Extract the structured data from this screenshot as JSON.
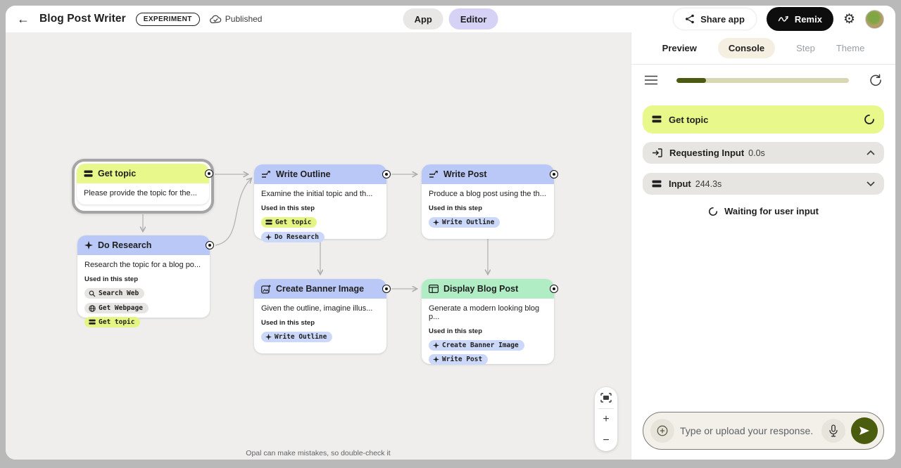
{
  "colors": {
    "lime": "#e9f88b",
    "blue_header": "#b9c8f7",
    "mint_header": "#b0edc4",
    "chip_lime": "#e4f584",
    "chip_blue": "#ccd8f9",
    "chip_gray": "#e7e5e2",
    "olive_accent": "#4a5c0e",
    "progress_track": "#d8d7b4",
    "canvas_bg": "#efeeed",
    "editor_pill": "#d5d2f6",
    "remix_bg": "#0d0d0d"
  },
  "header": {
    "title": "Blog Post Writer",
    "badge": "EXPERIMENT",
    "published_label": "Published",
    "mode_app": "App",
    "mode_editor": "Editor",
    "share_label": "Share app",
    "remix_label": "Remix"
  },
  "canvas": {
    "used_in_label": "Used in this step",
    "disclaimer": "Opal can make mistakes, so double-check it",
    "cards": [
      {
        "title": "Get topic",
        "description": "Please provide the topic for the...",
        "selected": true,
        "header_color": "lime",
        "icon": "form-icon",
        "chips": []
      },
      {
        "title": "Do Research",
        "description": "Research the topic for a blog po...",
        "header_color": "blue",
        "icon": "sparkle-icon",
        "chips": [
          {
            "label": "Search Web",
            "icon": "search-icon",
            "color": "gray"
          },
          {
            "label": "Get Webpage",
            "icon": "globe-icon",
            "color": "gray"
          },
          {
            "label": "Get topic",
            "icon": "form-icon",
            "color": "lime"
          }
        ]
      },
      {
        "title": "Write Outline",
        "description": "Examine the initial topic and th...",
        "header_color": "blue",
        "icon": "text-generate-icon",
        "chips": [
          {
            "label": "Get topic",
            "icon": "form-icon",
            "color": "lime"
          },
          {
            "label": "Do Research",
            "icon": "sparkle-icon",
            "color": "blue"
          }
        ]
      },
      {
        "title": "Write Post",
        "description": "Produce a blog post using the th...",
        "header_color": "blue",
        "icon": "text-generate-icon",
        "chips": [
          {
            "label": "Write Outline",
            "icon": "sparkle-icon",
            "color": "blue"
          }
        ]
      },
      {
        "title": "Create Banner Image",
        "description": "Given the outline, imagine illus...",
        "header_color": "blue",
        "icon": "image-plus-icon",
        "chips": [
          {
            "label": "Write Outline",
            "icon": "sparkle-icon",
            "color": "blue"
          }
        ]
      },
      {
        "title": "Display Blog Post",
        "description": "Generate a modern looking blog p...",
        "header_color": "mint",
        "icon": "browser-window-icon",
        "chips": [
          {
            "label": "Create Banner Image",
            "icon": "sparkle-icon",
            "color": "blue"
          },
          {
            "label": "Write Post",
            "icon": "sparkle-icon",
            "color": "blue"
          }
        ]
      }
    ],
    "zoom_controls": {
      "fit": "fit-to-screen",
      "zoom_in": "+",
      "zoom_out": "−"
    }
  },
  "panel": {
    "tabs": [
      {
        "label": "Preview",
        "active": false
      },
      {
        "label": "Console",
        "active": true
      },
      {
        "label": "Step",
        "active": false
      },
      {
        "label": "Theme",
        "active": false
      }
    ],
    "progress_percent": 17,
    "entries": [
      {
        "label": "Get topic",
        "time": "",
        "state": "running"
      },
      {
        "label": "Requesting Input",
        "time": "0.0s",
        "state": "expanded"
      },
      {
        "label": "Input",
        "time": "244.3s",
        "state": "collapsed"
      }
    ],
    "waiting_label": "Waiting for user input",
    "input_placeholder": "Type or upload your response."
  }
}
